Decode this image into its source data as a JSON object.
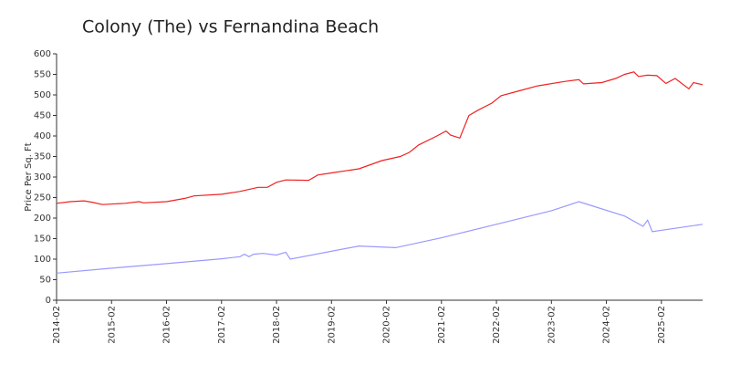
{
  "chart_data": {
    "type": "line",
    "title": "Colony (The) vs Fernandina Beach",
    "ylabel": "Price Per Sq. Ft",
    "xlim": [
      "2014-02",
      "2025-11"
    ],
    "xticks": [
      "2014-02",
      "2015-02",
      "2016-02",
      "2017-02",
      "2018-02",
      "2019-02",
      "2020-02",
      "2021-02",
      "2022-02",
      "2023-02",
      "2024-02",
      "2025-02"
    ],
    "ylim": [
      0,
      600
    ],
    "yticks": [
      0,
      50,
      100,
      150,
      200,
      250,
      300,
      350,
      400,
      450,
      500,
      550,
      600
    ],
    "series": [
      {
        "color": "#ee2222",
        "x": [
          "2014-02",
          "2014-05",
          "2014-08",
          "2014-10",
          "2014-12",
          "2015-05",
          "2015-08",
          "2015-09",
          "2016-02",
          "2016-06",
          "2016-08",
          "2017-02",
          "2017-06",
          "2017-10",
          "2017-12",
          "2018-02",
          "2018-04",
          "2018-09",
          "2018-11",
          "2019-02",
          "2019-08",
          "2020-01",
          "2020-05",
          "2020-07",
          "2020-09",
          "2021-01",
          "2021-03",
          "2021-04",
          "2021-06",
          "2021-08",
          "2021-10",
          "2022-01",
          "2022-03",
          "2022-07",
          "2022-11",
          "2023-05",
          "2023-08",
          "2023-09",
          "2024-01",
          "2024-04",
          "2024-06",
          "2024-08",
          "2024-09",
          "2024-11",
          "2025-01",
          "2025-03",
          "2025-05",
          "2025-08",
          "2025-09",
          "2025-11"
        ],
        "values": [
          236,
          240,
          242,
          238,
          233,
          236,
          240,
          237,
          240,
          248,
          254,
          258,
          265,
          275,
          275,
          287,
          293,
          292,
          305,
          310,
          320,
          340,
          350,
          360,
          378,
          400,
          412,
          402,
          395,
          450,
          463,
          480,
          498,
          510,
          522,
          533,
          537,
          527,
          530,
          540,
          550,
          556,
          545,
          548,
          547,
          528,
          540,
          515,
          530,
          525
        ]
      },
      {
        "color": "#9999ff",
        "x": [
          "2014-02",
          "2015-02",
          "2016-02",
          "2017-02",
          "2017-06",
          "2017-07",
          "2017-08",
          "2017-09",
          "2017-11",
          "2018-02",
          "2018-04",
          "2018-05",
          "2019-08",
          "2020-04",
          "2021-02",
          "2022-02",
          "2023-02",
          "2023-08",
          "2024-06",
          "2024-10",
          "2024-11",
          "2024-12",
          "2025-11"
        ],
        "values": [
          66,
          78,
          89,
          101,
          106,
          112,
          106,
          112,
          114,
          110,
          117,
          100,
          132,
          128,
          152,
          185,
          218,
          240,
          205,
          180,
          195,
          167,
          185
        ]
      }
    ]
  }
}
